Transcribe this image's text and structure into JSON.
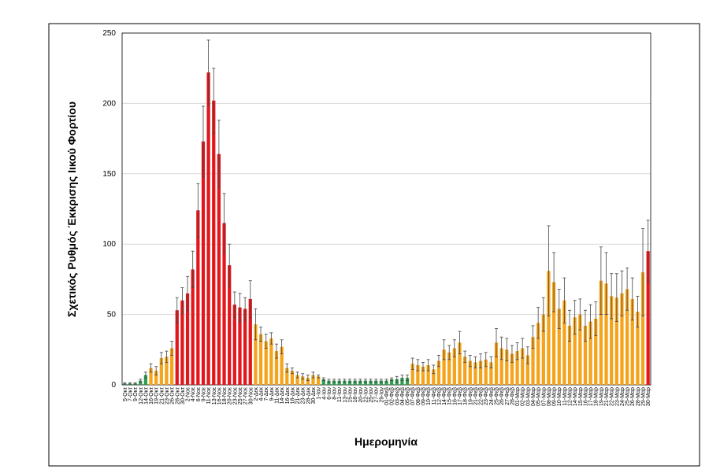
{
  "chart_data": {
    "type": "bar",
    "ylabel": "Σχετικός Ρυθμός Έκκρισης Ιικού Φορτίου",
    "xlabel": "Ημερομηνία",
    "categories": [
      "5-Οκτ",
      "7-Οκτ",
      "9-Οκτ",
      "12-Οκτ",
      "14-Οκτ",
      "16-Οκτ",
      "19-Οκτ",
      "21-Οκτ",
      "23-Οκτ",
      "26-Οκτ",
      "28-Οκτ",
      "30-Οκτ",
      "2-Νοε",
      "4-Νοε",
      "6-Νοε",
      "9-Νοε",
      "11-Νοε",
      "13-Νοε",
      "16-Νοε",
      "18-Νοε",
      "20-Νοε",
      "23-Νοε",
      "25-Νοε",
      "27-Νοε",
      "30-Νοε",
      "2-Δεκ",
      "4-Δεκ",
      "7-Δεκ",
      "9-Δεκ",
      "11-Δεκ",
      "14-Δεκ",
      "16-Δεκ",
      "18-Δεκ",
      "21-Δεκ",
      "23-Δεκ",
      "28-Δεκ",
      "30-Δεκ",
      "1-Ιαν",
      "4-Ιαν",
      "6-Ιαν",
      "8-Ιαν",
      "11-Ιαν",
      "13-Ιαν",
      "15-Ιαν",
      "18-Ιαν",
      "20-Ιαν",
      "22-Ιαν",
      "25-Ιαν",
      "27-Ιαν",
      "29-Ιαν",
      "01-Φεβ",
      "02-Φεβ",
      "03-Φεβ",
      "04-Φεβ",
      "05-Φεβ",
      "07-Φεβ",
      "08-Φεβ",
      "09-Φεβ",
      "10-Φεβ",
      "11-Φεβ",
      "12-Φεβ",
      "14-Φεβ",
      "15-Φεβ",
      "16-Φεβ",
      "17-Φεβ",
      "18-Φεβ",
      "19-Φεβ",
      "21-Φεβ",
      "22-Φεβ",
      "23-Φεβ",
      "24-Φεβ",
      "25-Φεβ",
      "26-Φεβ",
      "27-Φεβ",
      "28-Φεβ",
      "01-Μαρ",
      "02-Μαρ",
      "03-Μαρ",
      "04-Μαρ",
      "05-Μαρ",
      "07-Μαρ",
      "08-Μαρ",
      "09-Μαρ",
      "10-Μαρ",
      "11-Μαρ",
      "12-Μαρ",
      "14-Μαρ",
      "15-Μαρ",
      "16-Μαρ",
      "17-Μαρ",
      "18-Μαρ",
      "19-Μαρ",
      "21-Μαρ",
      "22-Μαρ",
      "23-Μαρ",
      "24-Μαρ",
      "25-Μαρ",
      "26-Μαρ",
      "28-Μαρ",
      "29-Μαρ",
      "30-Μαρ"
    ],
    "values": [
      1,
      1,
      1,
      3,
      7,
      12,
      10,
      19,
      20,
      26,
      53,
      60,
      65,
      82,
      124,
      173,
      222,
      202,
      164,
      115,
      85,
      57,
      55,
      54,
      61,
      43,
      36,
      31,
      33,
      24,
      27,
      12,
      10,
      7,
      6,
      5,
      7,
      6,
      4,
      3,
      3,
      3,
      3,
      3,
      3,
      3,
      3,
      3,
      3,
      3,
      3,
      4,
      4,
      5,
      5,
      15,
      14,
      13,
      14,
      11,
      17,
      25,
      23,
      26,
      30,
      20,
      17,
      16,
      17,
      18,
      16,
      30,
      26,
      25,
      22,
      24,
      26,
      21,
      34,
      44,
      50,
      81,
      73,
      54,
      60,
      42,
      48,
      50,
      42,
      45,
      47,
      74,
      72,
      63,
      62,
      65,
      68,
      61,
      52,
      80,
      95
    ],
    "errors": [
      0.5,
      0.5,
      0.5,
      1,
      2,
      3,
      3,
      4,
      4,
      5,
      9,
      9,
      12,
      13,
      19,
      25,
      23,
      23,
      24,
      21,
      15,
      9,
      10,
      8,
      13,
      11,
      5,
      5,
      4,
      5,
      5,
      3,
      2,
      2,
      2,
      2,
      2,
      1,
      1,
      1,
      1,
      1,
      1,
      1,
      1,
      1,
      1,
      1,
      1,
      1,
      1,
      1,
      2,
      2,
      2,
      4,
      4,
      3,
      4,
      3,
      4,
      7,
      5,
      6,
      8,
      4,
      4,
      4,
      5,
      5,
      4,
      10,
      8,
      8,
      6,
      6,
      7,
      6,
      8,
      11,
      12,
      32,
      21,
      14,
      16,
      11,
      12,
      11,
      11,
      12,
      12,
      24,
      22,
      16,
      17,
      16,
      15,
      15,
      11,
      31,
      22
    ],
    "colors": [
      "#2e9e4f",
      "#2e9e4f",
      "#2e9e4f",
      "#2e9e4f",
      "#2e9e4f",
      "#f5a31a",
      "#f5a31a",
      "#f5a31a",
      "#f5a31a",
      "#f5a31a",
      "#e3161b",
      "#e3161b",
      "#e3161b",
      "#e3161b",
      "#e3161b",
      "#e3161b",
      "#e3161b",
      "#e3161b",
      "#e3161b",
      "#e3161b",
      "#e3161b",
      "#e3161b",
      "#e3161b",
      "#e3161b",
      "#e3161b",
      "#f5a31a",
      "#f5a31a",
      "#f5a31a",
      "#f5a31a",
      "#f5a31a",
      "#f5a31a",
      "#f5a31a",
      "#f5a31a",
      "#f5a31a",
      "#f5a31a",
      "#f5a31a",
      "#f5a31a",
      "#f5a31a",
      "#2e9e4f",
      "#2e9e4f",
      "#2e9e4f",
      "#2e9e4f",
      "#2e9e4f",
      "#2e9e4f",
      "#2e9e4f",
      "#2e9e4f",
      "#2e9e4f",
      "#2e9e4f",
      "#2e9e4f",
      "#2e9e4f",
      "#2e9e4f",
      "#2e9e4f",
      "#2e9e4f",
      "#2e9e4f",
      "#2e9e4f",
      "#f5a31a",
      "#f5a31a",
      "#f5a31a",
      "#f5a31a",
      "#f5a31a",
      "#f5a31a",
      "#f5a31a",
      "#f5a31a",
      "#f5a31a",
      "#f5a31a",
      "#f5a31a",
      "#f5a31a",
      "#f5a31a",
      "#f5a31a",
      "#f5a31a",
      "#f5a31a",
      "#f5a31a",
      "#f5a31a",
      "#f5a31a",
      "#f5a31a",
      "#f5a31a",
      "#f5a31a",
      "#f5a31a",
      "#f5a31a",
      "#f5a31a",
      "#f5a31a",
      "#f5a31a",
      "#f5a31a",
      "#f5a31a",
      "#f5a31a",
      "#f5a31a",
      "#f5a31a",
      "#f5a31a",
      "#f5a31a",
      "#f5a31a",
      "#f5a31a",
      "#f5a31a",
      "#f5a31a",
      "#f5a31a",
      "#f5a31a",
      "#f5a31a",
      "#f5a31a",
      "#f5a31a",
      "#f5a31a",
      "#f5a31a",
      "#e3161b"
    ],
    "ylim": [
      0,
      250
    ],
    "yticks": [
      0,
      50,
      100,
      150,
      200,
      250
    ],
    "grid": true
  }
}
